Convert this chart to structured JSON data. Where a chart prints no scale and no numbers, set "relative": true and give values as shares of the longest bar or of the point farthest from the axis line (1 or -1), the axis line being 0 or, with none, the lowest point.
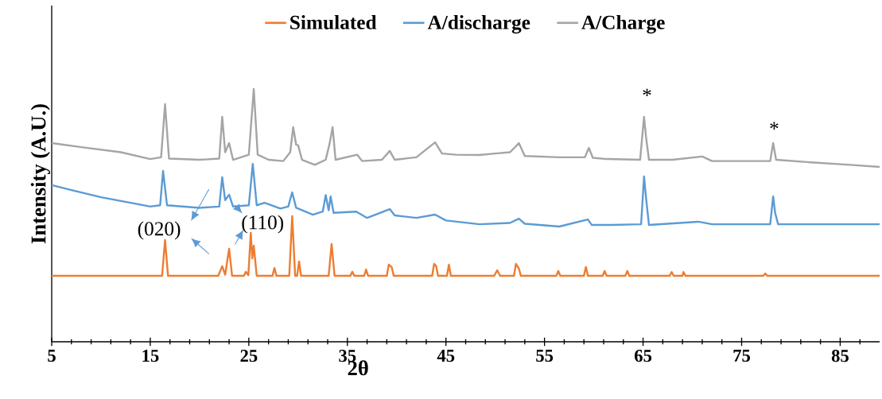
{
  "chart_data": {
    "type": "line",
    "relative": true,
    "xlabel": "2θ",
    "ylabel": "Intensity (A.U.)",
    "legend": "top",
    "xlim": [
      5,
      89
    ],
    "xticks": [
      5,
      {
        "value": 7,
        "label": null
      },
      {
        "value": 9,
        "label": null
      },
      {
        "value": 11,
        "label": null
      },
      {
        "value": 13,
        "label": null
      },
      15,
      {
        "value": 17,
        "label": null
      },
      {
        "value": 19,
        "label": null
      },
      {
        "value": 21,
        "label": null
      },
      {
        "value": 23,
        "label": null
      },
      25,
      {
        "value": 27,
        "label": null
      },
      {
        "value": 29,
        "label": null
      },
      {
        "value": 31,
        "label": null
      },
      {
        "value": 33,
        "label": null
      },
      35,
      {
        "value": 37,
        "label": null
      },
      {
        "value": 39,
        "label": null
      },
      {
        "value": 41,
        "label": null
      },
      {
        "value": 43,
        "label": null
      },
      45,
      {
        "value": 47,
        "label": null
      },
      {
        "value": 49,
        "label": null
      },
      {
        "value": 51,
        "label": null
      },
      {
        "value": 53,
        "label": null
      },
      55,
      {
        "value": 57,
        "label": null
      },
      {
        "value": 59,
        "label": null
      },
      {
        "value": 61,
        "label": null
      },
      {
        "value": 63,
        "label": null
      },
      65,
      {
        "value": 67,
        "label": null
      },
      {
        "value": 69,
        "label": null
      },
      {
        "value": 71,
        "label": null
      },
      {
        "value": 73,
        "label": null
      },
      75,
      {
        "value": 77,
        "label": null
      },
      {
        "value": 79,
        "label": null
      },
      {
        "value": 81,
        "label": null
      },
      {
        "value": 83,
        "label": null
      },
      85,
      {
        "value": 87,
        "label": null
      }
    ],
    "series": [
      {
        "name": "Simulated",
        "color": "#ed7d31",
        "x": [
          5,
          16.2,
          16.5,
          16.8,
          21.9,
          22.3,
          22.6,
          23.0,
          23.3,
          24.5,
          24.7,
          24.95,
          25.2,
          25.35,
          25.5,
          25.8,
          27.4,
          27.6,
          27.8,
          29.1,
          29.4,
          29.7,
          29.9,
          30.1,
          30.3,
          33.1,
          33.4,
          33.7,
          35.3,
          35.5,
          35.7,
          36.7,
          36.9,
          37.1,
          39.0,
          39.2,
          39.5,
          39.7,
          43.6,
          43.8,
          44.0,
          44.2,
          45.1,
          45.3,
          45.5,
          49.9,
          50.2,
          50.5,
          51.9,
          52.1,
          52.4,
          52.6,
          56.2,
          56.4,
          56.6,
          59.0,
          59.2,
          59.4,
          60.9,
          61.1,
          61.3,
          63.2,
          63.4,
          63.6,
          67.7,
          67.9,
          68.1,
          69.0,
          69.1,
          69.3,
          77.2,
          77.4,
          77.6,
          89
        ],
        "values": [
          0.261,
          0.261,
          0.403,
          0.261,
          0.261,
          0.299,
          0.265,
          0.368,
          0.261,
          0.261,
          0.277,
          0.263,
          0.431,
          0.33,
          0.38,
          0.261,
          0.261,
          0.292,
          0.261,
          0.261,
          0.497,
          0.261,
          0.261,
          0.318,
          0.261,
          0.261,
          0.387,
          0.261,
          0.261,
          0.277,
          0.261,
          0.261,
          0.286,
          0.261,
          0.261,
          0.305,
          0.295,
          0.261,
          0.261,
          0.308,
          0.3,
          0.261,
          0.261,
          0.305,
          0.261,
          0.261,
          0.283,
          0.261,
          0.261,
          0.308,
          0.29,
          0.261,
          0.261,
          0.28,
          0.261,
          0.261,
          0.296,
          0.261,
          0.261,
          0.28,
          0.261,
          0.261,
          0.28,
          0.261,
          0.261,
          0.276,
          0.261,
          0.261,
          0.276,
          0.261,
          0.261,
          0.27,
          0.261,
          0.261
        ]
      },
      {
        "name": "A/discharge",
        "color": "#5b9bd5",
        "x": [
          5,
          7,
          10,
          13,
          15,
          16.0,
          16.3,
          16.7,
          20,
          22.0,
          22.3,
          22.6,
          23.0,
          23.4,
          25.0,
          25.4,
          25.8,
          26.6,
          28.2,
          29.0,
          29.4,
          29.8,
          31.5,
          32.5,
          32.8,
          33.1,
          33.3,
          33.6,
          35.9,
          37,
          39.3,
          39.8,
          42,
          43.9,
          45,
          48.4,
          51.5,
          52.4,
          53,
          56.5,
          59.4,
          59.8,
          61.8,
          64.8,
          65.1,
          65.3,
          65.6,
          70.6,
          72,
          77.9,
          78.2,
          78.4,
          78.7,
          84,
          89
        ],
        "values": [
          0.62,
          0.6,
          0.572,
          0.55,
          0.535,
          0.54,
          0.676,
          0.54,
          0.53,
          0.535,
          0.651,
          0.56,
          0.582,
          0.535,
          0.54,
          0.704,
          0.54,
          0.55,
          0.527,
          0.535,
          0.591,
          0.53,
          0.503,
          0.515,
          0.58,
          0.52,
          0.575,
          0.51,
          0.515,
          0.49,
          0.525,
          0.5,
          0.49,
          0.503,
          0.48,
          0.465,
          0.47,
          0.487,
          0.467,
          0.456,
          0.484,
          0.462,
          0.462,
          0.465,
          0.654,
          0.57,
          0.462,
          0.475,
          0.465,
          0.465,
          0.575,
          0.51,
          0.465,
          0.465,
          0.465
        ]
      },
      {
        "name": "A/Charge",
        "color": "#a5a5a5",
        "x": [
          5,
          8,
          12,
          15,
          16.1,
          16.5,
          16.9,
          20,
          22.0,
          22.3,
          22.6,
          23.0,
          23.4,
          25.0,
          25.5,
          25.9,
          27,
          28.5,
          29.2,
          29.5,
          29.8,
          30.0,
          30.4,
          31.7,
          32.8,
          33.2,
          33.5,
          33.8,
          36.0,
          36.5,
          38.5,
          39.3,
          39.8,
          42,
          43.9,
          44.6,
          46,
          48.4,
          50,
          51.5,
          52.4,
          53,
          56.5,
          59.1,
          59.5,
          59.9,
          61.3,
          64.7,
          65.1,
          65.3,
          65.6,
          68,
          71.0,
          72,
          77.9,
          78.2,
          78.5,
          82,
          86,
          89
        ],
        "values": [
          0.786,
          0.77,
          0.75,
          0.723,
          0.73,
          0.94,
          0.725,
          0.72,
          0.725,
          0.89,
          0.75,
          0.786,
          0.72,
          0.74,
          1.0,
          0.74,
          0.72,
          0.715,
          0.75,
          0.849,
          0.78,
          0.777,
          0.72,
          0.7,
          0.72,
          0.785,
          0.849,
          0.72,
          0.74,
          0.715,
          0.72,
          0.755,
          0.72,
          0.73,
          0.789,
          0.745,
          0.74,
          0.739,
          0.745,
          0.75,
          0.786,
          0.735,
          0.73,
          0.73,
          0.767,
          0.728,
          0.723,
          0.72,
          0.89,
          0.81,
          0.72,
          0.72,
          0.733,
          0.715,
          0.715,
          0.786,
          0.72,
          0.71,
          0.7,
          0.692
        ]
      }
    ],
    "annotations": [
      "(020)",
      "(110)",
      "*",
      "*"
    ]
  }
}
